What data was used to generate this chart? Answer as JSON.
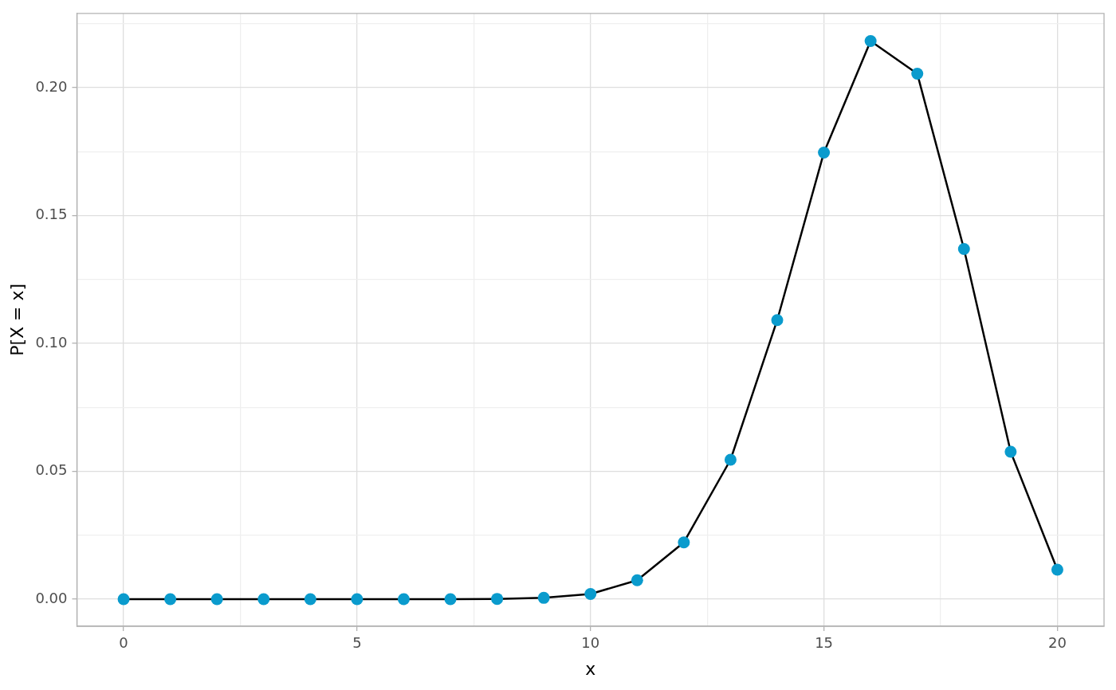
{
  "chart_data": {
    "type": "line",
    "xlabel": "x",
    "ylabel": "P[X = x]",
    "x": [
      0,
      1,
      2,
      3,
      4,
      5,
      6,
      7,
      8,
      9,
      10,
      11,
      12,
      13,
      14,
      15,
      16,
      17,
      18,
      19,
      20
    ],
    "series": [
      {
        "color": "#000000",
        "colors": [
          "#0a9bcd",
          "#0a9bcd",
          "#0a9bcd",
          "#0a9bcd",
          "#0a9bcd",
          "#0a9bcd",
          "#0a9bcd",
          "#0a9bcd",
          "#0a9bcd",
          "#0a9bcd",
          "#0a9bcd",
          "#0a9bcd",
          "#0a9bcd",
          "#0a9bcd",
          "#0a9bcd",
          "#0a9bcd",
          "#0a9bcd",
          "#0a9bcd",
          "#0a9bcd",
          "#0a9bcd",
          "#0a9bcd"
        ],
        "values": [
          0,
          0,
          0,
          0,
          0,
          0,
          0,
          0,
          0.0001,
          0.0005,
          0.002,
          0.0074,
          0.0222,
          0.0545,
          0.1091,
          0.1746,
          0.2182,
          0.2054,
          0.1369,
          0.0576,
          0.0115
        ]
      }
    ],
    "marker": "circle",
    "grid": true,
    "legend": false,
    "xlim": [
      -1,
      21
    ],
    "xticks": [
      0,
      {
        "value": 2.5,
        "label": null
      },
      5,
      {
        "value": 7.5,
        "label": null
      },
      10,
      {
        "value": 12.5,
        "label": null
      },
      15,
      {
        "value": 17.5,
        "label": null
      },
      20
    ],
    "ylim": [
      -0.0106,
      0.229
    ],
    "yticks": [
      {
        "value": 0,
        "label": "0.00"
      },
      {
        "value": 0.025,
        "label": null
      },
      {
        "value": 0.05,
        "label": "0.05"
      },
      {
        "value": 0.075,
        "label": null
      },
      {
        "value": 0.1,
        "label": "0.10"
      },
      {
        "value": 0.125,
        "label": null
      },
      {
        "value": 0.15,
        "label": "0.15"
      },
      {
        "value": 0.175,
        "label": null
      },
      {
        "value": 0.2,
        "label": "0.20"
      },
      {
        "value": 0.225,
        "label": null
      }
    ]
  }
}
